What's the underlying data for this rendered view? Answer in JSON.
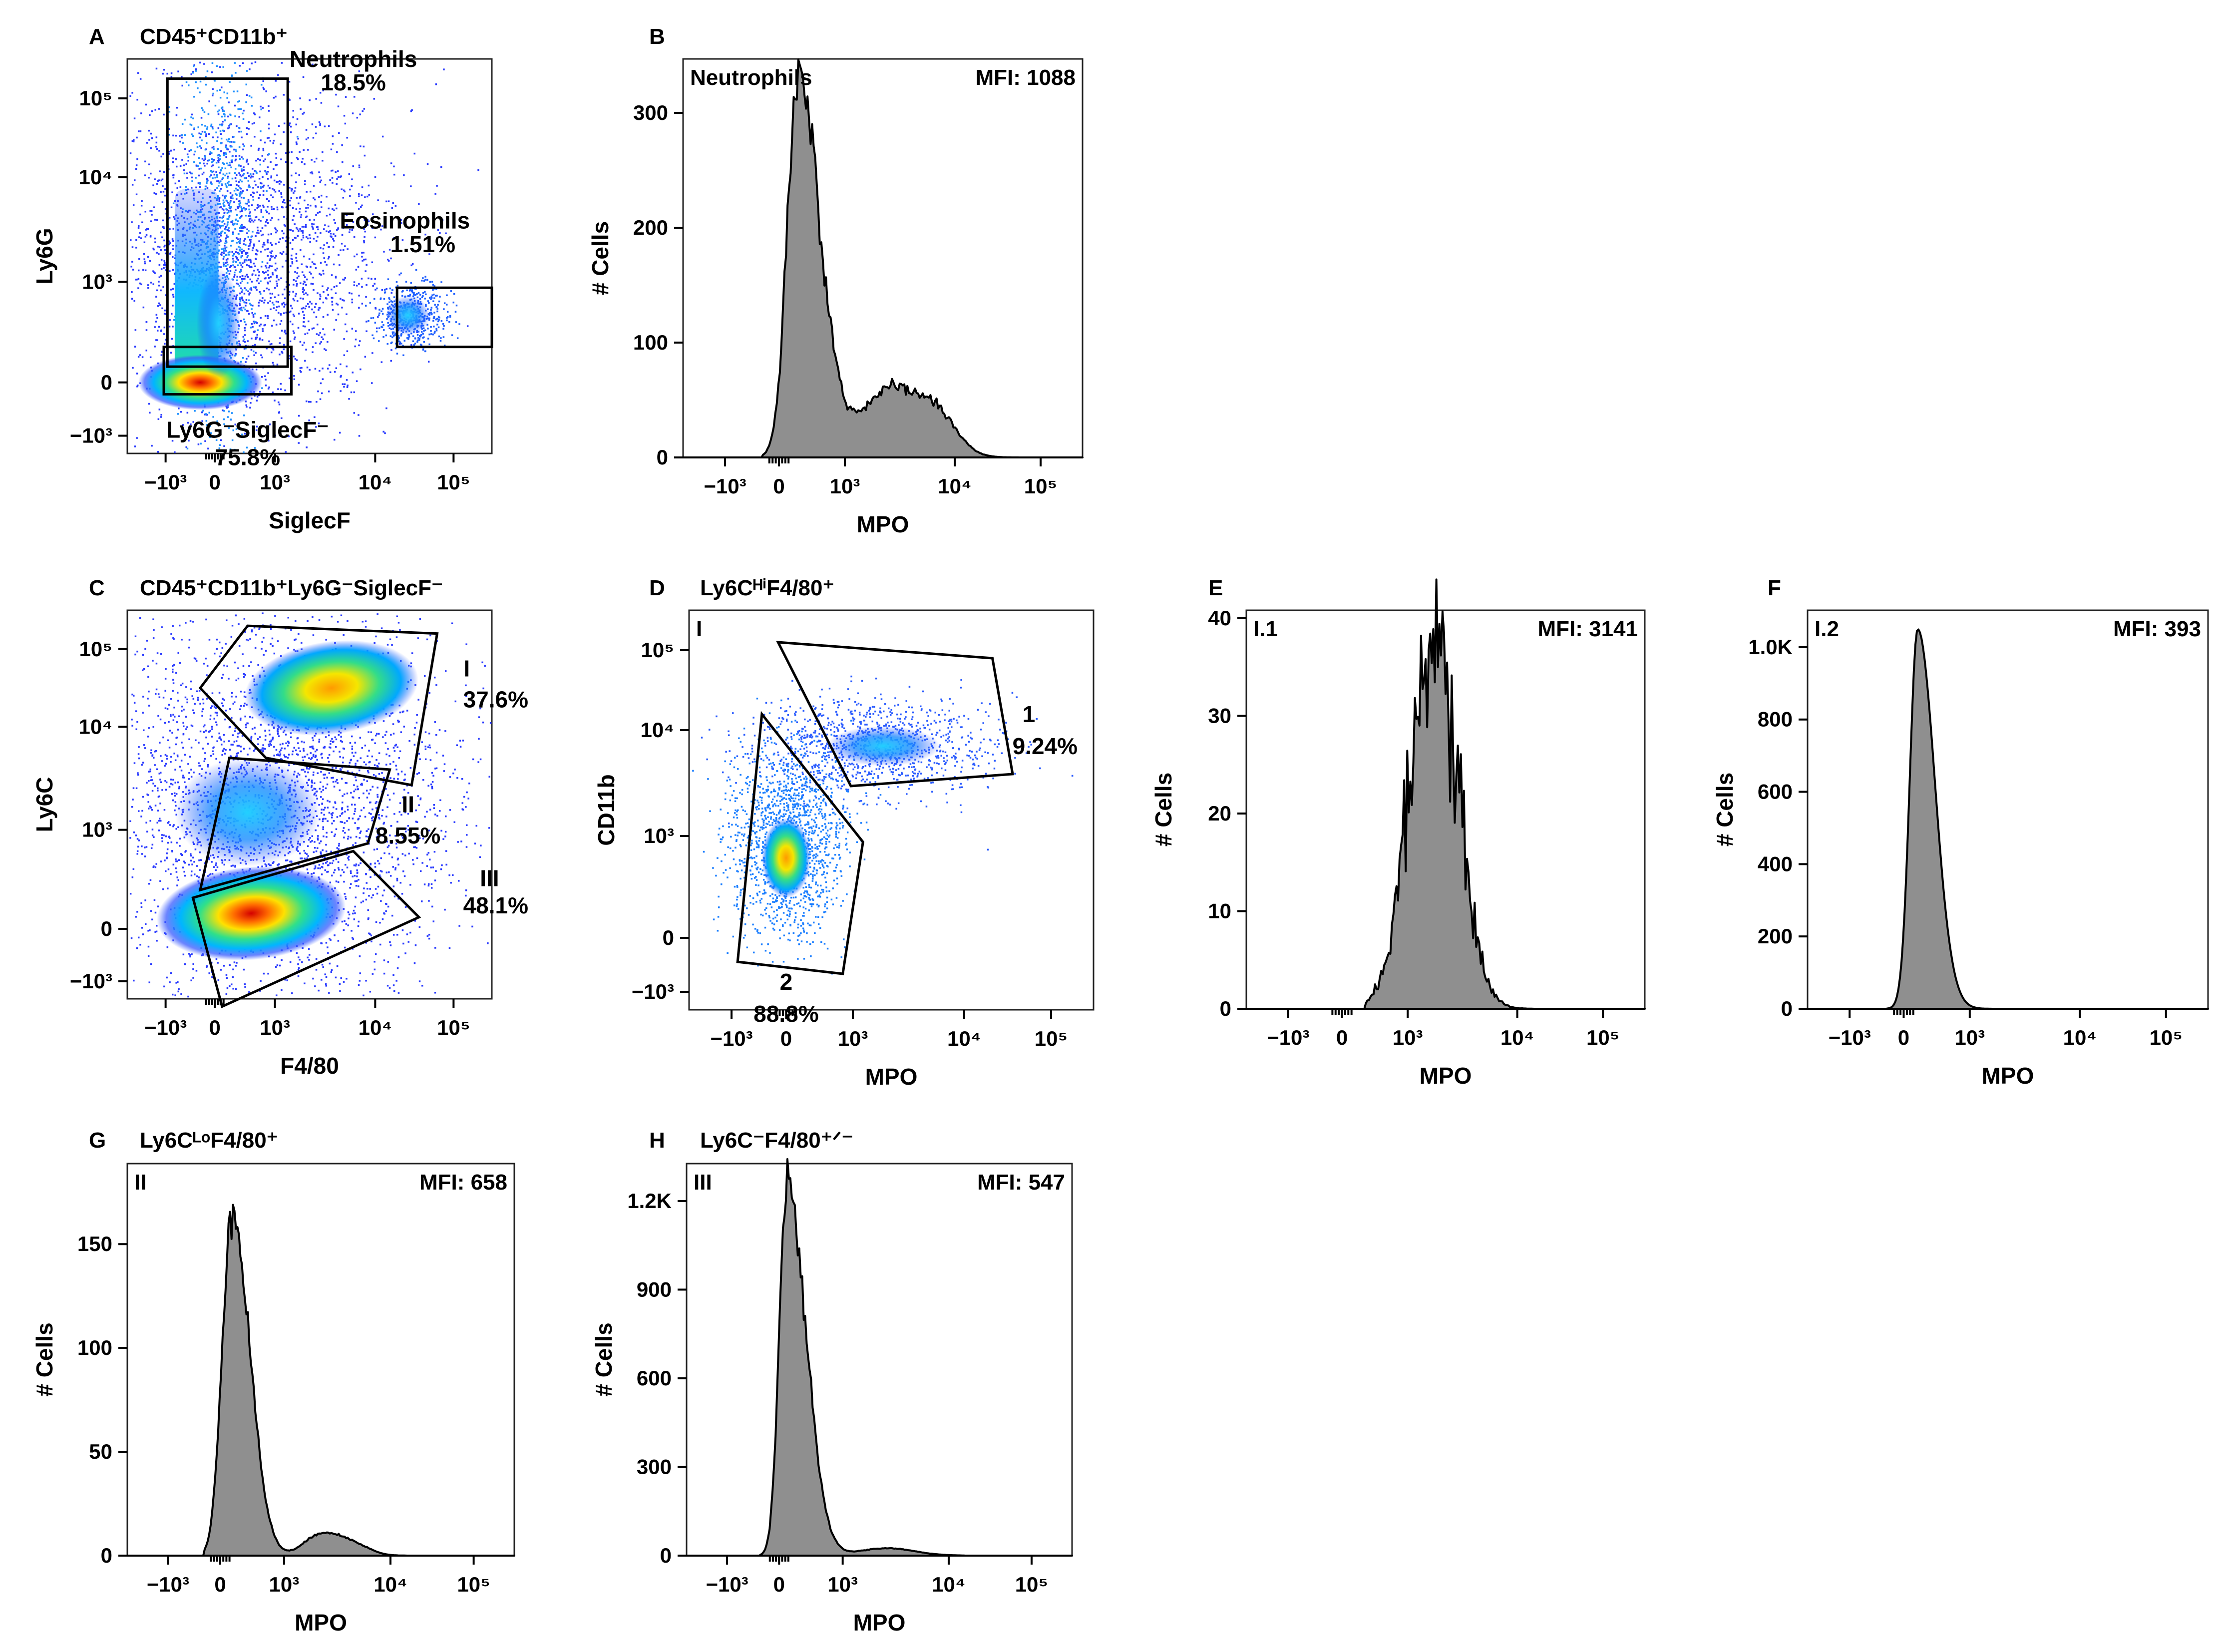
{
  "chart_data": [
    {
      "id": "A",
      "type": "scatter",
      "panel_letter": "A",
      "title": "CD45⁺CD11b⁺",
      "xlabel": "SiglecF",
      "ylabel": "Ly6G",
      "x_ticks": [
        "−10³",
        "0",
        "10³",
        "10⁴",
        "10⁵"
      ],
      "y_ticks": [
        "10⁵",
        "10⁴",
        "10³",
        "0",
        "−10³"
      ],
      "populations": [
        {
          "name": "Neutrophils",
          "percent": "18.5%"
        },
        {
          "name": "Eosinophils",
          "percent": "1.51%"
        },
        {
          "name": "Ly6G⁻SiglecF⁻",
          "percent": "75.8%"
        }
      ]
    },
    {
      "id": "B",
      "type": "area",
      "panel_letter": "B",
      "title": "",
      "inner_label": "Neutrophils",
      "mfi": "MFI: 1088",
      "xlabel": "MPO",
      "ylabel": "# Cells",
      "x_ticks": [
        "−10³",
        "0",
        "10³",
        "10⁴",
        "10⁵"
      ],
      "y_ticks": [
        "300",
        "200",
        "100",
        "0"
      ],
      "ylim": [
        0,
        340
      ],
      "peak_x": 0.29,
      "peak_value": 330,
      "shape": "neutrophil"
    },
    {
      "id": "C",
      "type": "scatter",
      "panel_letter": "C",
      "title": "CD45⁺CD11b⁺Ly6G⁻SiglecF⁻",
      "xlabel": "F4/80",
      "ylabel": "Ly6C",
      "x_ticks": [
        "−10³",
        "0",
        "10³",
        "10⁴",
        "10⁵"
      ],
      "y_ticks": [
        "10⁵",
        "10⁴",
        "10³",
        "0",
        "−10³"
      ],
      "populations": [
        {
          "name": "I",
          "percent": "37.6%"
        },
        {
          "name": "II",
          "percent": "8.55%"
        },
        {
          "name": "III",
          "percent": "48.1%"
        }
      ]
    },
    {
      "id": "D",
      "type": "scatter",
      "panel_letter": "D",
      "title": "Ly6CᴴⁱF4/80⁺",
      "inner_label": "I",
      "xlabel": "MPO",
      "ylabel": "CD11b",
      "x_ticks": [
        "−10³",
        "0",
        "10³",
        "10⁴",
        "10⁵"
      ],
      "y_ticks": [
        "10⁵",
        "10⁴",
        "10³",
        "0",
        "−10³"
      ],
      "populations": [
        {
          "name": "1",
          "percent": "9.24%"
        },
        {
          "name": "2",
          "percent": "88.8%"
        }
      ]
    },
    {
      "id": "E",
      "type": "area",
      "panel_letter": "E",
      "title": "",
      "inner_label": "I.1",
      "mfi": "MFI: 3141",
      "xlabel": "MPO",
      "ylabel": "# Cells",
      "x_ticks": [
        "−10³",
        "0",
        "10³",
        "10⁴",
        "10⁵"
      ],
      "y_ticks": [
        "40",
        "30",
        "20",
        "10",
        "0"
      ],
      "ylim": [
        0,
        40
      ],
      "peak_x": 0.47,
      "peak_value": 38,
      "shape": "broad"
    },
    {
      "id": "F",
      "type": "area",
      "panel_letter": "F",
      "title": "",
      "inner_label": "I.2",
      "mfi": "MFI: 393",
      "xlabel": "MPO",
      "ylabel": "# Cells",
      "x_ticks": [
        "−10³",
        "0",
        "10³",
        "10⁴",
        "10⁵"
      ],
      "y_ticks": [
        "1.0K",
        "800",
        "600",
        "400",
        "200",
        "0"
      ],
      "ylim": [
        0,
        1080
      ],
      "peak_x": 0.275,
      "peak_value": 1050,
      "shape": "narrow"
    },
    {
      "id": "G",
      "type": "area",
      "panel_letter": "G",
      "title": "Ly6CᴸᵒF4/80⁺",
      "inner_label": "II",
      "mfi": "MFI: 658",
      "xlabel": "MPO",
      "ylabel": "# Cells",
      "x_ticks": [
        "−10³",
        "0",
        "10³",
        "10⁴",
        "10⁵"
      ],
      "y_ticks": [
        "150",
        "100",
        "50",
        "0"
      ],
      "ylim": [
        0,
        185
      ],
      "peak_x": 0.27,
      "peak_value": 168,
      "shape": "shoulder"
    },
    {
      "id": "H",
      "type": "area",
      "panel_letter": "H",
      "title": "Ly6C⁻F4/80⁺ᐟ⁻",
      "inner_label": "III",
      "mfi": "MFI: 547",
      "xlabel": "MPO",
      "ylabel": "# Cells",
      "x_ticks": [
        "−10³",
        "0",
        "10³",
        "10⁴",
        "10⁵"
      ],
      "y_ticks": [
        "1.2K",
        "900",
        "600",
        "300",
        "0"
      ],
      "ylim": [
        0,
        1300
      ],
      "peak_x": 0.26,
      "peak_value": 1250,
      "shape": "tail"
    }
  ]
}
